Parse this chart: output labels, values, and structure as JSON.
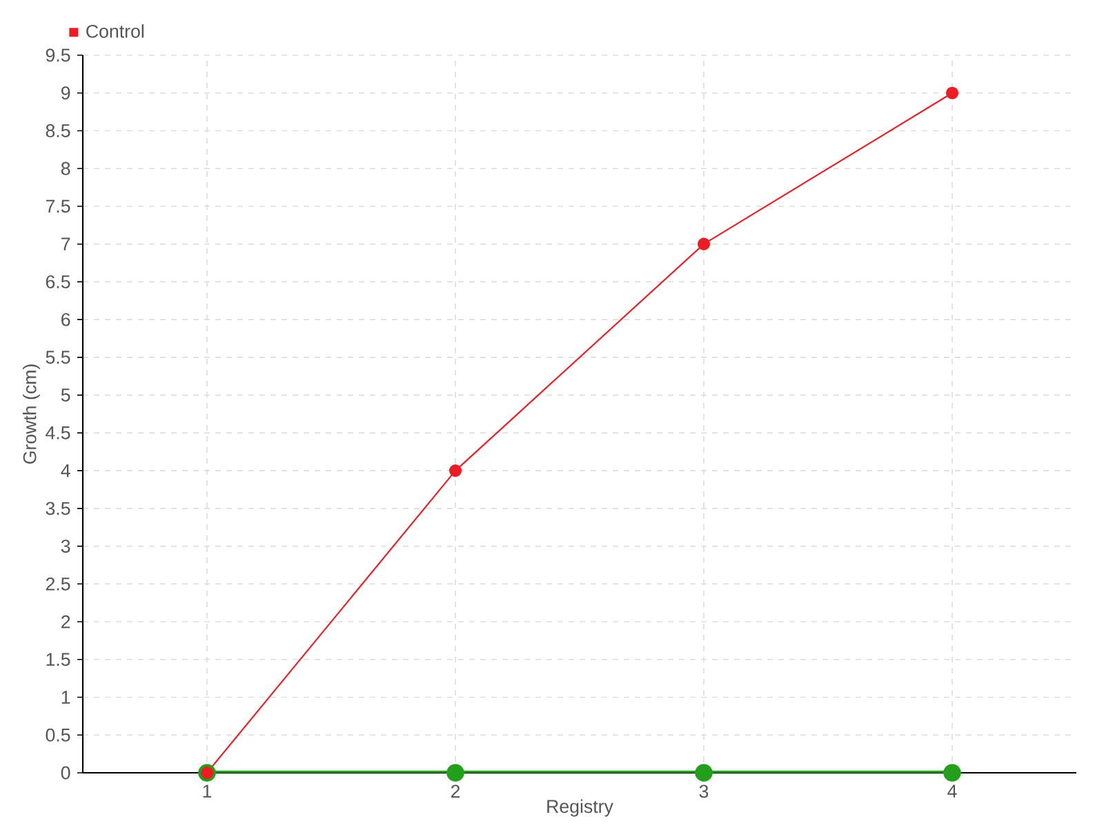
{
  "chart_data": {
    "type": "line",
    "xlabel": "Registry",
    "ylabel": "Growth (cm)",
    "categories": [
      "1",
      "2",
      "3",
      "4"
    ],
    "series": [
      {
        "color": "#22a01c",
        "values": [
          0,
          0,
          0,
          0
        ]
      },
      {
        "name": "Control",
        "color": "#ed1c24",
        "values": [
          0,
          4,
          7,
          9
        ]
      }
    ],
    "ylim": [
      0,
      9.5
    ],
    "yticks": [
      0,
      0.5,
      1,
      1.5,
      2,
      2.5,
      3,
      3.5,
      4,
      4.5,
      5,
      5.5,
      6,
      6.5,
      7,
      7.5,
      8,
      8.5,
      9,
      9.5
    ],
    "grid": true,
    "legend": "top left",
    "marker": "circle",
    "line_style": "solid"
  }
}
